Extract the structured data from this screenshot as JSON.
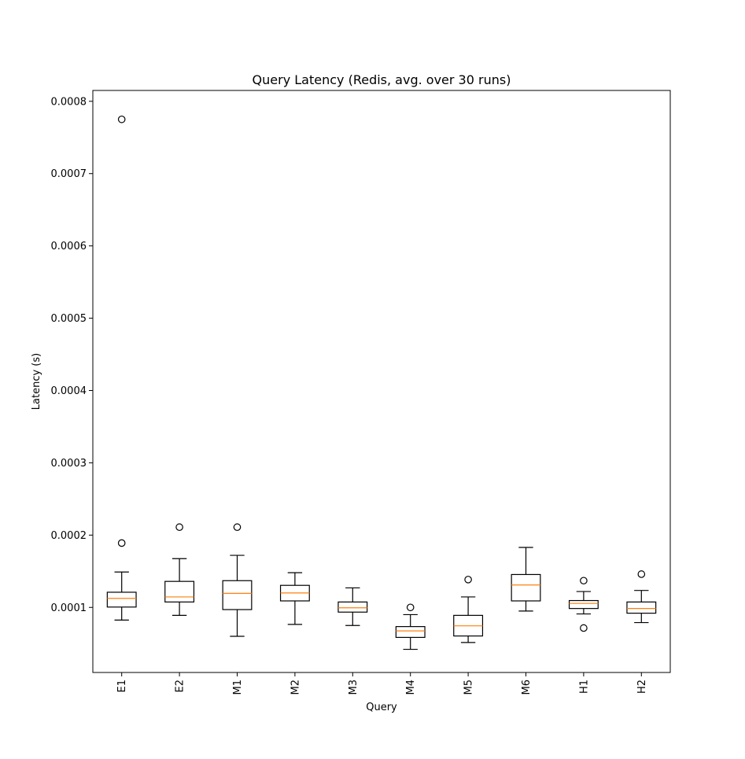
{
  "chart_data": {
    "type": "box",
    "title": "Query Latency (Redis, avg. over 30 runs)",
    "xlabel": "Query",
    "ylabel": "Latency (s)",
    "ylim": [
      1e-05,
      0.000815
    ],
    "yticks": [
      0.0001,
      0.0002,
      0.0003,
      0.0004,
      0.0005,
      0.0006,
      0.0007,
      0.0008
    ],
    "ytick_labels": [
      "0.0001",
      "0.0002",
      "0.0003",
      "0.0004",
      "0.0005",
      "0.0006",
      "0.0007",
      "0.0008"
    ],
    "categories": [
      "E1",
      "E2",
      "M1",
      "M2",
      "M3",
      "M4",
      "M5",
      "M6",
      "H1",
      "H2"
    ],
    "x_tick_rotation": "vertical",
    "grid": false,
    "colors": {
      "box": "#000000",
      "median": "#ff7f0e",
      "frame": "#000000"
    },
    "boxes": [
      {
        "label": "E1",
        "whislo": 8.25e-05,
        "q1": 0.0001005,
        "med": 0.0001125,
        "q3": 0.000121,
        "whishi": 0.000149,
        "fliers": [
          0.000189,
          0.000775
        ]
      },
      {
        "label": "E2",
        "whislo": 8.9e-05,
        "q1": 0.0001075,
        "med": 0.0001145,
        "q3": 0.000136,
        "whishi": 0.0001675,
        "fliers": [
          0.000211
        ]
      },
      {
        "label": "M1",
        "whislo": 6e-05,
        "q1": 9.7e-05,
        "med": 0.0001195,
        "q3": 0.000137,
        "whishi": 0.000172,
        "fliers": [
          0.000211
        ]
      },
      {
        "label": "M2",
        "whislo": 7.65e-05,
        "q1": 0.000109,
        "med": 0.00012,
        "q3": 0.0001305,
        "whishi": 0.000148,
        "fliers": []
      },
      {
        "label": "M3",
        "whislo": 7.5e-05,
        "q1": 9.35e-05,
        "med": 9.95e-05,
        "q3": 0.0001075,
        "whishi": 0.000127,
        "fliers": []
      },
      {
        "label": "M4",
        "whislo": 4.2e-05,
        "q1": 5.85e-05,
        "med": 6.75e-05,
        "q3": 7.35e-05,
        "whishi": 9e-05,
        "fliers": [
          0.0001
        ]
      },
      {
        "label": "M5",
        "whislo": 5.15e-05,
        "q1": 6.05e-05,
        "med": 7.45e-05,
        "q3": 8.9e-05,
        "whishi": 0.0001145,
        "fliers": [
          0.0001385
        ]
      },
      {
        "label": "M6",
        "whislo": 9.5e-05,
        "q1": 0.000109,
        "med": 0.000131,
        "q3": 0.0001455,
        "whishi": 0.000183,
        "fliers": []
      },
      {
        "label": "H1",
        "whislo": 9.1e-05,
        "q1": 9.85e-05,
        "med": 0.0001055,
        "q3": 0.0001095,
        "whishi": 0.000122,
        "fliers": [
          7.15e-05,
          0.000137
        ]
      },
      {
        "label": "H2",
        "whislo": 7.9e-05,
        "q1": 9.2e-05,
        "med": 9.85e-05,
        "q3": 0.0001075,
        "whishi": 0.0001235,
        "fliers": [
          0.000146
        ]
      }
    ]
  }
}
